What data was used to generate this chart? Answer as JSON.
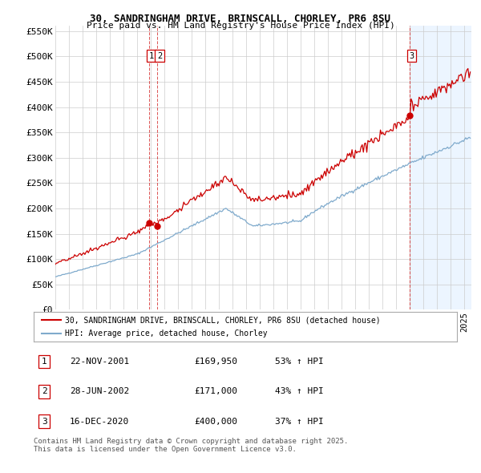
{
  "title1": "30, SANDRINGHAM DRIVE, BRINSCALL, CHORLEY, PR6 8SU",
  "title2": "Price paid vs. HM Land Registry's House Price Index (HPI)",
  "legend_label_red": "30, SANDRINGHAM DRIVE, BRINSCALL, CHORLEY, PR6 8SU (detached house)",
  "legend_label_blue": "HPI: Average price, detached house, Chorley",
  "xlim_start": 1995.0,
  "xlim_end": 2025.5,
  "ylim_min": 0,
  "ylim_max": 560000,
  "yticks": [
    0,
    50000,
    100000,
    150000,
    200000,
    250000,
    300000,
    350000,
    400000,
    450000,
    500000,
    550000
  ],
  "ytick_labels": [
    "£0",
    "£50K",
    "£100K",
    "£150K",
    "£200K",
    "£250K",
    "£300K",
    "£350K",
    "£400K",
    "£450K",
    "£500K",
    "£550K"
  ],
  "transactions": [
    {
      "num": 1,
      "date_num": 2001.896,
      "price": 169950,
      "label": "22-NOV-2001",
      "pct": "53%",
      "price_str": "£169,950"
    },
    {
      "num": 2,
      "date_num": 2002.49,
      "price": 171000,
      "label": "28-JUN-2002",
      "pct": "43%",
      "price_str": "£171,000"
    },
    {
      "num": 3,
      "date_num": 2020.96,
      "price": 400000,
      "label": "16-DEC-2020",
      "pct": "37%",
      "price_str": "£400,000"
    }
  ],
  "footer": "Contains HM Land Registry data © Crown copyright and database right 2025.\nThis data is licensed under the Open Government Licence v3.0.",
  "bg_color": "#ffffff",
  "plot_bg_color": "#ffffff",
  "shade_color": "#ddeeff",
  "grid_color": "#cccccc",
  "red_color": "#cc0000",
  "blue_color": "#7faacc"
}
